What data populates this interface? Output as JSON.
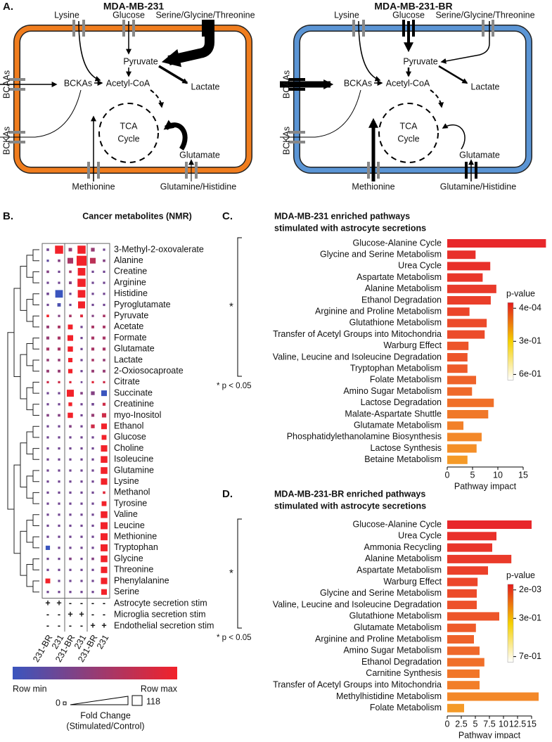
{
  "panel_labels": [
    "A.",
    "B.",
    "C.",
    "D."
  ],
  "pathway_maps": [
    {
      "title": "MDA-MB-231",
      "color": "#f07d1e",
      "labels": {
        "lysine": "Lysine",
        "glucose": "Glucose",
        "serine": "Serine/Glycine/Threonine",
        "pyruvate": "Pyruvate",
        "lactate": "Lactate",
        "bckas_in": "BCKAs",
        "acetyl_coa": "Acetyl-CoA",
        "bcaas": "BCAAs",
        "bckas_out": "BCKAs",
        "tca": [
          "TCA",
          "Cycle"
        ],
        "glutamate": "Glutamate",
        "methionine": "Methionine",
        "glutamine": "Glutamine/Histidine"
      }
    },
    {
      "title": "MDA-MB-231-BR",
      "color": "#5b95d5",
      "labels": {
        "lysine": "Lysine",
        "glucose": "Glucose",
        "serine": "Serine/Glycine/Threonine",
        "pyruvate": "Pyruvate",
        "lactate": "Lactate",
        "bckas_in": "BCKAs",
        "acetyl_coa": "Acetyl-CoA",
        "bcaas": "BCAAs",
        "bckas_out": "BCKAs",
        "tca": [
          "TCA",
          "Cycle"
        ],
        "glutamate": "Glutamate",
        "methionine": "Methionine",
        "glutamine": "Glutamine/Histidine"
      }
    }
  ],
  "heatmap": {
    "title": "Cancer metabolites (NMR)",
    "metabolites": [
      "3-Methyl-2-oxovalerate",
      "Alanine",
      "Creatine",
      "Arginine",
      "Histidine",
      "Pyroglutamate",
      "Pyruvate",
      "Acetate",
      "Formate",
      "Glutamate",
      "Lactate",
      "2-Oxiosocaproate",
      "Citrate",
      "Succinate",
      "Creatinine",
      "myo-Inositol",
      "Ethanol",
      "Glucose",
      "Choline",
      "Isoleucine",
      "Glutamine",
      "Lysine",
      "Methanol",
      "Tyrosine",
      "Valine",
      "Leucine",
      "Methionine",
      "Tryptophan",
      "Glycine",
      "Threonine",
      "Phenylalanine",
      "Serine"
    ],
    "columns": [
      "231-BR",
      "231",
      "231-BR",
      "231",
      "231-BR",
      "231"
    ],
    "stimuli": [
      {
        "name": "Astrocyte secretion stim",
        "signs": [
          "+",
          "+",
          "-",
          "-",
          "-",
          "-"
        ]
      },
      {
        "name": "Microglia secretion stim",
        "signs": [
          "-",
          "-",
          "+",
          "+",
          "-",
          "-"
        ]
      },
      {
        "name": "Endothelial secretion stim",
        "signs": [
          "-",
          "-",
          "-",
          "-",
          "+",
          "+"
        ]
      }
    ],
    "color_scale": {
      "min_label": "Row min",
      "max_label": "Row max",
      "min_color": "#3a55be",
      "max_color": "#f2222a"
    },
    "size_scale": {
      "min": 0,
      "max": 118,
      "title": "Fold Change",
      "subtitle": "(Stimulated/Control)"
    },
    "row_scaled": [
      [
        0.3,
        1,
        0.5,
        1,
        0.5,
        0.3
      ],
      [
        0.2,
        0.4,
        0.6,
        1,
        0.7,
        0.4
      ],
      [
        0.4,
        0.3,
        0.6,
        1,
        0.3,
        0.3
      ],
      [
        0.3,
        0.3,
        0.4,
        1,
        0.3,
        0.3
      ],
      [
        0.3,
        0,
        0.3,
        1,
        0.3,
        0.3
      ],
      [
        0.3,
        0.1,
        0.3,
        1,
        0.3,
        0.3
      ],
      [
        1,
        0.4,
        0.6,
        0.9,
        0.4,
        0.6
      ],
      [
        0.5,
        0.6,
        1,
        0.3,
        0.6,
        0.6
      ],
      [
        0.5,
        0.6,
        1,
        0.3,
        0.6,
        0.6
      ],
      [
        0.6,
        0.6,
        1,
        0.3,
        0.6,
        0.6
      ],
      [
        0.5,
        0.5,
        1,
        0.3,
        0.6,
        0.5
      ],
      [
        0.5,
        0.5,
        1,
        0.3,
        0.5,
        0.5
      ],
      [
        0.8,
        0.8,
        0.9,
        0.3,
        0.9,
        0.8
      ],
      [
        0.3,
        0.3,
        1,
        0.4,
        0.4,
        0
      ],
      [
        0.3,
        0.3,
        1,
        0.3,
        0.3,
        0.8
      ],
      [
        0.4,
        0.4,
        1,
        0.3,
        0.5,
        0.8
      ],
      [
        0.3,
        0.3,
        0.4,
        0.3,
        0.8,
        1
      ],
      [
        0.3,
        0.3,
        0.3,
        0.3,
        0.3,
        1
      ],
      [
        0.3,
        0.3,
        0.3,
        0.3,
        0.3,
        1
      ],
      [
        0.3,
        0.3,
        0.3,
        0.3,
        0.3,
        1
      ],
      [
        0.3,
        0.3,
        0.3,
        0.3,
        0.3,
        1
      ],
      [
        0.3,
        0.3,
        0.3,
        0.3,
        0.3,
        1
      ],
      [
        0.3,
        0.3,
        0.3,
        0.3,
        0.3,
        0.9
      ],
      [
        0.3,
        0.3,
        0.3,
        0.3,
        0.3,
        1
      ],
      [
        0.3,
        0.3,
        0.3,
        0.3,
        0.3,
        1
      ],
      [
        0.3,
        0.3,
        0.3,
        0.3,
        0.3,
        1
      ],
      [
        0.3,
        0.3,
        0.3,
        0.3,
        0.3,
        1
      ],
      [
        0,
        0.3,
        0.3,
        0.3,
        0.3,
        1
      ],
      [
        0.3,
        0.3,
        0.4,
        0.3,
        0.4,
        1
      ],
      [
        0.3,
        0.3,
        0.3,
        0.3,
        0.3,
        1
      ],
      [
        1,
        0.3,
        0.3,
        0.3,
        0.3,
        1
      ],
      [
        0.3,
        0.3,
        0.3,
        0.3,
        0.3,
        1
      ]
    ],
    "fold_change": [
      [
        3,
        70,
        8,
        70,
        10,
        2
      ],
      [
        2,
        3,
        30,
        110,
        30,
        3
      ],
      [
        3,
        2,
        3,
        60,
        2,
        2
      ],
      [
        2,
        2,
        4,
        70,
        2,
        2
      ],
      [
        3,
        60,
        2,
        60,
        2,
        2
      ],
      [
        2,
        8,
        2,
        50,
        2,
        2
      ],
      [
        3,
        2,
        3,
        4,
        2,
        3
      ],
      [
        4,
        4,
        20,
        2,
        4,
        4
      ],
      [
        5,
        5,
        30,
        2,
        5,
        5
      ],
      [
        5,
        5,
        25,
        2,
        5,
        5
      ],
      [
        3,
        3,
        15,
        2,
        3,
        3
      ],
      [
        4,
        4,
        15,
        2,
        4,
        4
      ],
      [
        2,
        2,
        2,
        1,
        2,
        2
      ],
      [
        2,
        2,
        50,
        3,
        10,
        30
      ],
      [
        2,
        2,
        10,
        2,
        3,
        5
      ],
      [
        3,
        3,
        25,
        2,
        5,
        15
      ],
      [
        2,
        2,
        3,
        2,
        10,
        30
      ],
      [
        2,
        2,
        2,
        2,
        2,
        20
      ],
      [
        2,
        2,
        2,
        2,
        2,
        40
      ],
      [
        2,
        2,
        2,
        2,
        2,
        45
      ],
      [
        2,
        2,
        2,
        2,
        2,
        45
      ],
      [
        2,
        2,
        2,
        2,
        2,
        40
      ],
      [
        2,
        2,
        2,
        2,
        2,
        3
      ],
      [
        2,
        2,
        2,
        2,
        2,
        20
      ],
      [
        2,
        2,
        2,
        2,
        2,
        45
      ],
      [
        2,
        2,
        2,
        2,
        2,
        50
      ],
      [
        2,
        2,
        2,
        2,
        2,
        50
      ],
      [
        15,
        2,
        2,
        2,
        2,
        50
      ],
      [
        2,
        2,
        3,
        2,
        3,
        45
      ],
      [
        2,
        2,
        2,
        2,
        2,
        40
      ],
      [
        20,
        2,
        2,
        2,
        2,
        40
      ],
      [
        2,
        2,
        2,
        2,
        2,
        30
      ]
    ]
  },
  "chart_data": [
    {
      "type": "barh",
      "title": [
        "MDA-MB-231 enriched pathways",
        "stimulated with astrocyte secretions"
      ],
      "categories": [
        "Glucose-Alanine Cycle",
        "Glycine and Serine Metabolism",
        "Urea Cycle",
        "Aspartate Metabolism",
        "Alanine Metabolism",
        "Ethanol Degradation",
        "Arginine and Proline Metabolism",
        "Glutathione Metabolism",
        "Transfer of Acetyl Groups into Mitochondria",
        "Warburg Effect",
        "Valine, Leucine and Isoleucine Degradation",
        "Tryptophan Metabolism",
        "Folate Metabolism",
        "Amino Sugar Metabolism",
        "Lactose Degradation",
        "Malate-Aspartate Shuttle",
        "Glutamate Metabolism",
        "Phosphatidylethanolamine Biosynthesis",
        "Lactose Synthesis",
        "Betaine Metabolism"
      ],
      "values": [
        19.5,
        5.6,
        8.5,
        7,
        9.7,
        8.6,
        4.4,
        7.8,
        7.4,
        4.2,
        4,
        4,
        5.7,
        4.9,
        9.2,
        8.1,
        3.2,
        6.8,
        5.8,
        4
      ],
      "colors": [
        "#e8282b",
        "#e8302a",
        "#e8302a",
        "#e9362a",
        "#e93a2a",
        "#ea3f2a",
        "#eb452a",
        "#ec4b2a",
        "#ec4b2a",
        "#ed552a",
        "#ed552a",
        "#ee5b2a",
        "#ef632a",
        "#ef692a",
        "#f07029",
        "#f07829",
        "#f28029",
        "#f38829",
        "#f48f28",
        "#f59a28"
      ],
      "xlabel": "Pathway impact",
      "xlim": [
        0,
        20
      ],
      "xticks": [
        0,
        5,
        10,
        15
      ],
      "colorbar": {
        "title": "p-value",
        "colors": [
          "#e31a1c",
          "#f5d000",
          "#ffffff"
        ],
        "ticks": [
          {
            "value": 0.0004,
            "label": "4e-04"
          },
          {
            "value": 0.3,
            "label": "3e-01"
          },
          {
            "value": 0.6,
            "label": "6e-01"
          }
        ]
      },
      "significance": {
        "marker": "*",
        "note": "* p < 0.05"
      }
    },
    {
      "type": "barh",
      "title": [
        "MDA-MB-231-BR enriched pathways",
        "stimulated with astrocyte secretions"
      ],
      "categories": [
        "Glucose-Alanine Cycle",
        "Urea Cycle",
        "Ammonia Recycling",
        "Alanine Metabolism",
        "Aspartate Metabolism",
        "Warburg Effect",
        "Glycine and Serine Metabolism",
        "Valine, Leucine and Isoleucine Degradation",
        "Glutathione Metabolism",
        "Glutamate Metabolism",
        "Arginine and Proline Metabolism",
        "Amino Sugar Metabolism",
        "Ethanol Degradation",
        "Carnitine Synthesis",
        "Transfer of Acetyl Groups into Mitochondria",
        "Methylhistidine Metabolism",
        "Folate Metabolism"
      ],
      "values": [
        15,
        8.75,
        8,
        11.4,
        7.25,
        5.4,
        5.25,
        5.25,
        9.25,
        5.1,
        4.75,
        5.75,
        6.6,
        5.75,
        5.75,
        16.25,
        3
      ],
      "colors": [
        "#e8282b",
        "#e9302a",
        "#e9352a",
        "#ea3a2a",
        "#eb402a",
        "#ec462a",
        "#ec4b2a",
        "#ed512a",
        "#ed552a",
        "#ee5b2a",
        "#ef622a",
        "#ef682a",
        "#f06f29",
        "#f17629",
        "#f27e29",
        "#f38829",
        "#f49a28"
      ],
      "xlabel": "Pathway impact",
      "xlim": [
        0,
        18
      ],
      "xticks": [
        0,
        2.5,
        5,
        7.5,
        10,
        12.5,
        15
      ],
      "colorbar": {
        "title": "p-value",
        "colors": [
          "#e31a1c",
          "#f5d000",
          "#ffffff"
        ],
        "ticks": [
          {
            "value": 0.002,
            "label": "2e-03"
          },
          {
            "value": 0.3,
            "label": "3e-01"
          },
          {
            "value": 0.7,
            "label": "7e-01"
          }
        ]
      },
      "significance": {
        "marker": "*",
        "note": "* p < 0.05"
      }
    }
  ]
}
